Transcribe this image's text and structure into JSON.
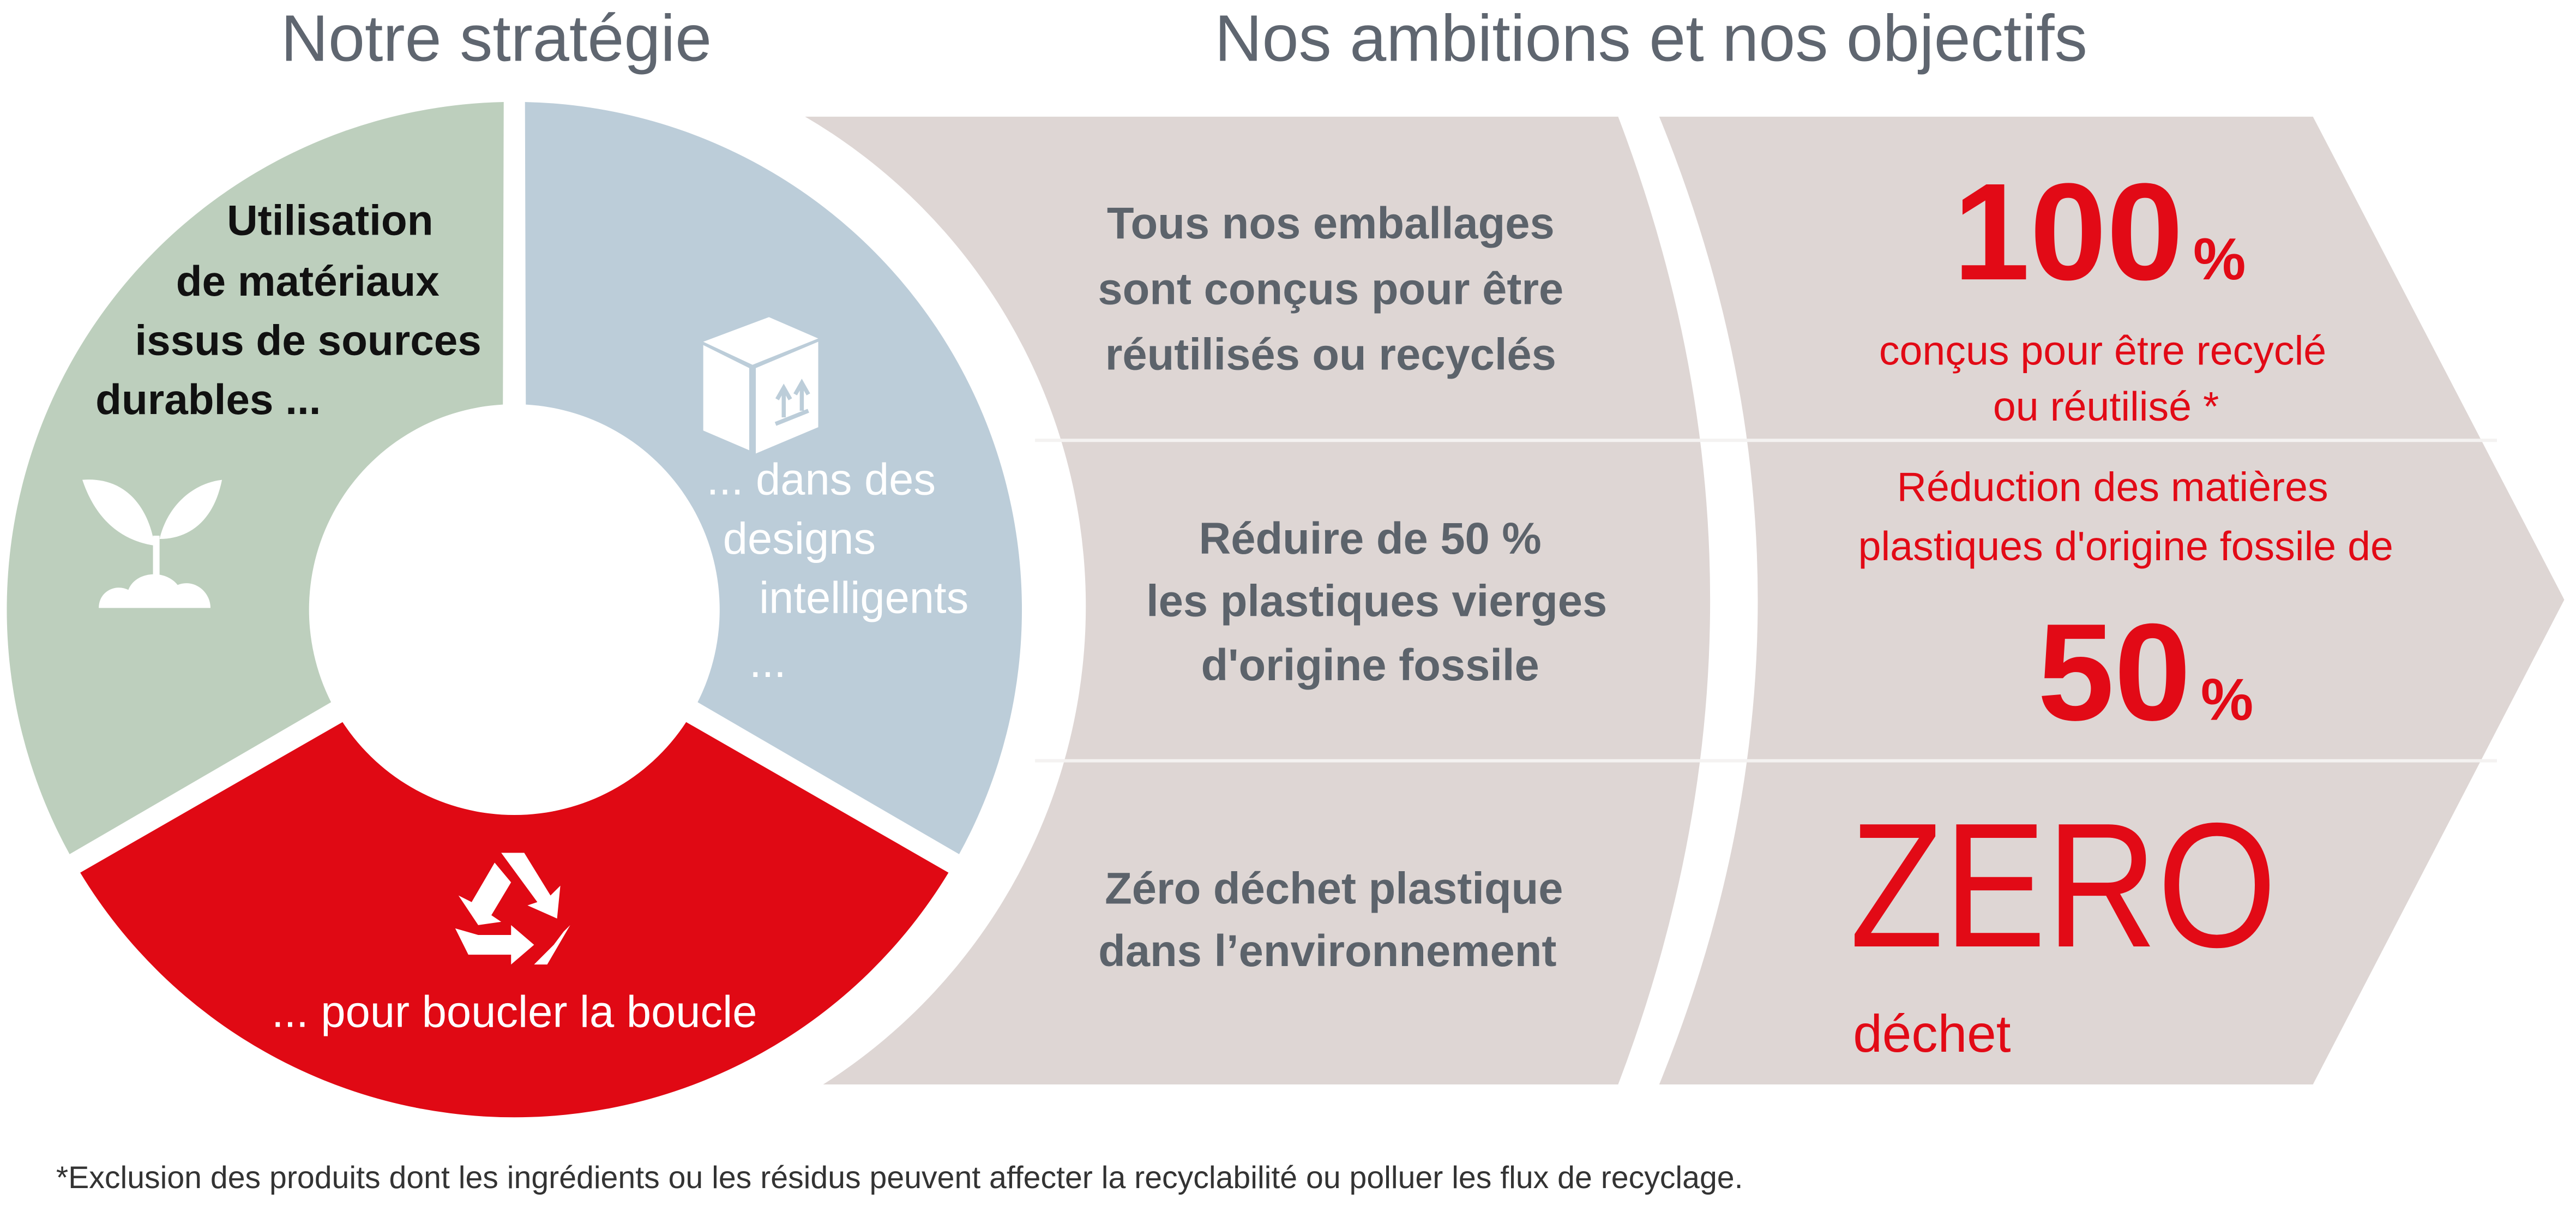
{
  "titles": {
    "strategy": "Notre stratégie",
    "ambitions": "Nos ambitions et nos objectifs"
  },
  "colors": {
    "green_segment": "#bdcfbd",
    "blue_segment": "#bccdd9",
    "red_segment": "#e00914",
    "panel": "#ded6d4",
    "accent_red": "#e20a16",
    "text_gray": "#5c636b"
  },
  "strategy": {
    "materials": {
      "lines": [
        "Utilisation",
        "de matériaux",
        "issus de sources",
        "durables ..."
      ],
      "icon": "seedling-icon"
    },
    "design": {
      "lines": [
        "... dans des",
        "designs",
        "intelligents",
        "..."
      ],
      "icon": "box-icon"
    },
    "loop": {
      "lines": [
        "... pour boucler la boucle"
      ],
      "icon": "recycle-icon"
    }
  },
  "ambitions": [
    {
      "lines": [
        "Tous nos emballages",
        "sont conçus pour être",
        "réutilisés ou recyclés"
      ]
    },
    {
      "lines": [
        "Réduire de 50 %",
        "les plastiques vierges",
        "d'origine fossile"
      ]
    },
    {
      "lines": [
        "Zéro déchet plastique",
        "dans l’environnement"
      ]
    }
  ],
  "objectives": {
    "packaging": {
      "value": "100",
      "unit": "%",
      "lines": [
        "conçus pour être recyclé",
        "ou réutilisé *"
      ]
    },
    "plastics": {
      "lines": [
        "Réduction des matières",
        "plastiques d'origine fossile de"
      ],
      "value": "50",
      "unit": "%"
    },
    "waste": {
      "value": "ZERO",
      "label": "déchet"
    }
  },
  "footnote": "*Exclusion des produits dont les ingrédients ou les résidus peuvent affecter la recyclabilité ou polluer les flux de recyclage."
}
